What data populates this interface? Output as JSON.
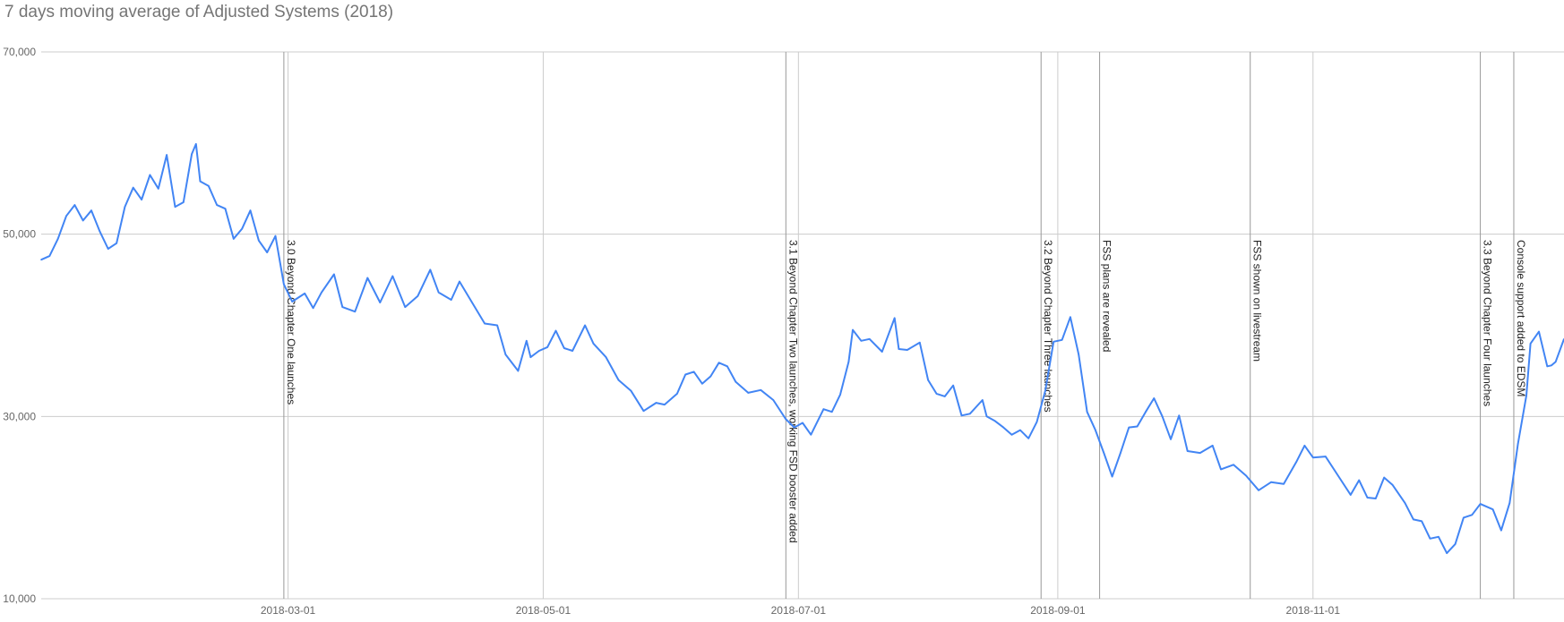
{
  "chart_data": {
    "type": "line",
    "title": "7 days moving average of Adjusted Systems (2018)",
    "xlabel": "",
    "ylabel": "",
    "x_range": [
      "2018-01-01",
      "2018-12-31"
    ],
    "ylim": [
      10000,
      70000
    ],
    "y_ticks": [
      {
        "value": 10000,
        "label": "10,000"
      },
      {
        "value": 30000,
        "label": "30,000"
      },
      {
        "value": 50000,
        "label": "50,000"
      },
      {
        "value": 70000,
        "label": "70,000"
      }
    ],
    "x_ticks": [
      {
        "date": "2018-03-01",
        "label": "2018-03-01"
      },
      {
        "date": "2018-05-01",
        "label": "2018-05-01"
      },
      {
        "date": "2018-07-01",
        "label": "2018-07-01"
      },
      {
        "date": "2018-09-01",
        "label": "2018-09-01"
      },
      {
        "date": "2018-11-01",
        "label": "2018-11-01"
      }
    ],
    "grid": true,
    "legend": "none",
    "series_color": "#4285f4",
    "annotations": [
      {
        "date": "2018-02-28",
        "text": "3.0 Beyond Chapter One launches"
      },
      {
        "date": "2018-06-28",
        "text": "3.1 Beyond Chapter Two launches, working FSD booster added"
      },
      {
        "date": "2018-08-28",
        "text": "3.2 Beyond Chapter Three launches"
      },
      {
        "date": "2018-09-11",
        "text": "FSS plans are revealed"
      },
      {
        "date": "2018-10-17",
        "text": "FSS shown on livestream"
      },
      {
        "date": "2018-12-11",
        "text": "3.3 Beyond Chapter Four launches"
      },
      {
        "date": "2018-12-19",
        "text": "Console support added to EDSM"
      }
    ],
    "series": [
      {
        "points": [
          [
            "2018-01-01",
            47200
          ],
          [
            "2018-01-03",
            47600
          ],
          [
            "2018-01-05",
            49500
          ],
          [
            "2018-01-07",
            52000
          ],
          [
            "2018-01-09",
            53200
          ],
          [
            "2018-01-11",
            51500
          ],
          [
            "2018-01-13",
            52600
          ],
          [
            "2018-01-15",
            50300
          ],
          [
            "2018-01-17",
            48400
          ],
          [
            "2018-01-19",
            49000
          ],
          [
            "2018-01-21",
            53000
          ],
          [
            "2018-01-23",
            55100
          ],
          [
            "2018-01-25",
            53800
          ],
          [
            "2018-01-27",
            56500
          ],
          [
            "2018-01-29",
            55000
          ],
          [
            "2018-01-31",
            58700
          ],
          [
            "2018-02-02",
            53000
          ],
          [
            "2018-02-04",
            53500
          ],
          [
            "2018-02-06",
            58800
          ],
          [
            "2018-02-07",
            59900
          ],
          [
            "2018-02-08",
            55800
          ],
          [
            "2018-02-10",
            55300
          ],
          [
            "2018-02-12",
            53200
          ],
          [
            "2018-02-14",
            52800
          ],
          [
            "2018-02-16",
            49500
          ],
          [
            "2018-02-18",
            50600
          ],
          [
            "2018-02-20",
            52600
          ],
          [
            "2018-02-22",
            49300
          ],
          [
            "2018-02-24",
            48000
          ],
          [
            "2018-02-26",
            49800
          ],
          [
            "2018-02-28",
            44500
          ],
          [
            "2018-03-02",
            42600
          ],
          [
            "2018-03-05",
            43500
          ],
          [
            "2018-03-07",
            41900
          ],
          [
            "2018-03-09",
            43600
          ],
          [
            "2018-03-12",
            45600
          ],
          [
            "2018-03-14",
            42000
          ],
          [
            "2018-03-17",
            41500
          ],
          [
            "2018-03-20",
            45200
          ],
          [
            "2018-03-23",
            42500
          ],
          [
            "2018-03-26",
            45400
          ],
          [
            "2018-03-29",
            42000
          ],
          [
            "2018-04-01",
            43200
          ],
          [
            "2018-04-04",
            46100
          ],
          [
            "2018-04-06",
            43600
          ],
          [
            "2018-04-09",
            42800
          ],
          [
            "2018-04-11",
            44800
          ],
          [
            "2018-04-14",
            42500
          ],
          [
            "2018-04-17",
            40200
          ],
          [
            "2018-04-20",
            40000
          ],
          [
            "2018-04-22",
            36800
          ],
          [
            "2018-04-25",
            35000
          ],
          [
            "2018-04-27",
            38300
          ],
          [
            "2018-04-28",
            36500
          ],
          [
            "2018-04-30",
            37200
          ],
          [
            "2018-05-02",
            37600
          ],
          [
            "2018-05-04",
            39400
          ],
          [
            "2018-05-06",
            37500
          ],
          [
            "2018-05-08",
            37200
          ],
          [
            "2018-05-11",
            40000
          ],
          [
            "2018-05-13",
            38000
          ],
          [
            "2018-05-16",
            36500
          ],
          [
            "2018-05-19",
            34000
          ],
          [
            "2018-05-22",
            32800
          ],
          [
            "2018-05-25",
            30600
          ],
          [
            "2018-05-28",
            31500
          ],
          [
            "2018-05-30",
            31300
          ],
          [
            "2018-06-02",
            32500
          ],
          [
            "2018-06-04",
            34600
          ],
          [
            "2018-06-06",
            34900
          ],
          [
            "2018-06-08",
            33600
          ],
          [
            "2018-06-10",
            34400
          ],
          [
            "2018-06-12",
            35900
          ],
          [
            "2018-06-14",
            35500
          ],
          [
            "2018-06-16",
            33800
          ],
          [
            "2018-06-19",
            32600
          ],
          [
            "2018-06-22",
            32900
          ],
          [
            "2018-06-25",
            31800
          ],
          [
            "2018-06-28",
            29700
          ],
          [
            "2018-06-30",
            28800
          ],
          [
            "2018-07-02",
            29300
          ],
          [
            "2018-07-04",
            28000
          ],
          [
            "2018-07-07",
            30800
          ],
          [
            "2018-07-09",
            30500
          ],
          [
            "2018-07-11",
            32400
          ],
          [
            "2018-07-13",
            36000
          ],
          [
            "2018-07-14",
            39500
          ],
          [
            "2018-07-16",
            38300
          ],
          [
            "2018-07-18",
            38500
          ],
          [
            "2018-07-21",
            37100
          ],
          [
            "2018-07-24",
            40800
          ],
          [
            "2018-07-25",
            37400
          ],
          [
            "2018-07-27",
            37300
          ],
          [
            "2018-07-30",
            38100
          ],
          [
            "2018-08-01",
            34000
          ],
          [
            "2018-08-03",
            32500
          ],
          [
            "2018-08-05",
            32200
          ],
          [
            "2018-08-07",
            33400
          ],
          [
            "2018-08-09",
            30100
          ],
          [
            "2018-08-11",
            30300
          ],
          [
            "2018-08-14",
            31800
          ],
          [
            "2018-08-15",
            30000
          ],
          [
            "2018-08-17",
            29500
          ],
          [
            "2018-08-19",
            28800
          ],
          [
            "2018-08-21",
            28000
          ],
          [
            "2018-08-23",
            28500
          ],
          [
            "2018-08-25",
            27600
          ],
          [
            "2018-08-27",
            29400
          ],
          [
            "2018-08-29",
            32800
          ],
          [
            "2018-08-31",
            38200
          ],
          [
            "2018-09-02",
            38400
          ],
          [
            "2018-09-04",
            40900
          ],
          [
            "2018-09-06",
            36800
          ],
          [
            "2018-09-08",
            30500
          ],
          [
            "2018-09-10",
            28500
          ],
          [
            "2018-09-12",
            26000
          ],
          [
            "2018-09-14",
            23400
          ],
          [
            "2018-09-16",
            26000
          ],
          [
            "2018-09-18",
            28800
          ],
          [
            "2018-09-20",
            28900
          ],
          [
            "2018-09-22",
            30500
          ],
          [
            "2018-09-24",
            32000
          ],
          [
            "2018-09-26",
            30000
          ],
          [
            "2018-09-28",
            27500
          ],
          [
            "2018-09-30",
            30100
          ],
          [
            "2018-10-02",
            26200
          ],
          [
            "2018-10-05",
            26000
          ],
          [
            "2018-10-08",
            26800
          ],
          [
            "2018-10-10",
            24200
          ],
          [
            "2018-10-13",
            24700
          ],
          [
            "2018-10-16",
            23500
          ],
          [
            "2018-10-19",
            21900
          ],
          [
            "2018-10-22",
            22800
          ],
          [
            "2018-10-25",
            22600
          ],
          [
            "2018-10-28",
            25000
          ],
          [
            "2018-10-30",
            26800
          ],
          [
            "2018-11-01",
            25500
          ],
          [
            "2018-11-04",
            25600
          ],
          [
            "2018-11-07",
            23500
          ],
          [
            "2018-11-10",
            21400
          ],
          [
            "2018-11-12",
            23000
          ],
          [
            "2018-11-14",
            21100
          ],
          [
            "2018-11-16",
            21000
          ],
          [
            "2018-11-18",
            23300
          ],
          [
            "2018-11-20",
            22500
          ],
          [
            "2018-11-23",
            20500
          ],
          [
            "2018-11-25",
            18700
          ],
          [
            "2018-11-27",
            18500
          ],
          [
            "2018-11-29",
            16600
          ],
          [
            "2018-12-01",
            16800
          ],
          [
            "2018-12-03",
            15000
          ],
          [
            "2018-12-05",
            16000
          ],
          [
            "2018-12-07",
            18900
          ],
          [
            "2018-12-09",
            19200
          ],
          [
            "2018-12-11",
            20400
          ],
          [
            "2018-12-14",
            19800
          ],
          [
            "2018-12-16",
            17500
          ],
          [
            "2018-12-18",
            20500
          ],
          [
            "2018-12-20",
            27000
          ],
          [
            "2018-12-22",
            32300
          ],
          [
            "2018-12-23",
            38000
          ],
          [
            "2018-12-25",
            39300
          ],
          [
            "2018-12-27",
            35500
          ],
          [
            "2018-12-28",
            35600
          ],
          [
            "2018-12-29",
            36000
          ],
          [
            "2018-12-31",
            38500
          ]
        ]
      }
    ]
  }
}
